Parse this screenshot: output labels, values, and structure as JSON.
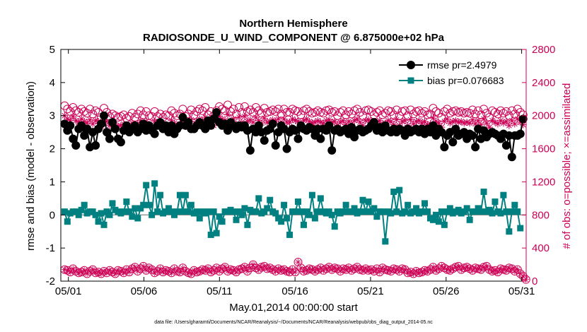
{
  "chart_data": {
    "type": "line",
    "title_line1": "Northern Hemisphere",
    "title_line2": "RADIOSONDE_U_WIND_COMPONENT @ 6.875000e+02 hPa",
    "xlabel": "May.01,2014 00:00:00 start",
    "ylabel_left": "rmse and bias (model - observation)",
    "ylabel_right": "# of obs: o=possible; ×=assimilated",
    "footnote": "data file: /Users/gharamti/Documents/NCAR/Reanalysis/~/Documents/NCAR/Reanalysis/webpub/obs_diag_output_2014-05.nc",
    "xlim": [
      0.5,
      31.3
    ],
    "ylim_left": [
      -2,
      5
    ],
    "ylim_right": [
      0,
      2800
    ],
    "left_ticks": [
      "5",
      "4",
      "3",
      "2",
      "1",
      "0",
      "-1",
      "-2"
    ],
    "left_tick_values": [
      5,
      4,
      3,
      2,
      1,
      0,
      -1,
      -2
    ],
    "right_ticks": [
      "2800",
      "2400",
      "2000",
      "1600",
      "1200",
      "800",
      "400",
      "0"
    ],
    "right_tick_values": [
      2800,
      2400,
      2000,
      1600,
      1200,
      800,
      400,
      0
    ],
    "x_ticks": [
      "05/01",
      "05/06",
      "05/11",
      "05/16",
      "05/21",
      "05/26",
      "05/31"
    ],
    "x_tick_values": [
      1,
      6,
      11,
      16,
      21,
      26,
      31
    ],
    "colors": {
      "rmse": "#000000",
      "bias": "#008080",
      "obs": "#cc0055",
      "zero_line": "#999999"
    },
    "series": [
      {
        "name": "rmse",
        "legend": "rmse pr=2.4979",
        "mean": 2.4979,
        "values": [
          2.75,
          2.55,
          2.7,
          2.3,
          2.1,
          2.6,
          2.7,
          2.4,
          2.6,
          2.05,
          2.5,
          2.1,
          2.6,
          2.75,
          3.0,
          2.5,
          2.3,
          2.8,
          2.6,
          2.3,
          2.2,
          2.55,
          2.7,
          2.5,
          2.6,
          2.7,
          2.5,
          2.6,
          2.75,
          2.55,
          2.7,
          2.55,
          2.45,
          2.7,
          2.8,
          2.6,
          2.7,
          2.5,
          2.7,
          2.45,
          2.6,
          2.7,
          2.95,
          2.7,
          2.8,
          2.6,
          2.6,
          2.7,
          2.8,
          2.7,
          2.6,
          2.85,
          2.7,
          2.9,
          3.1,
          2.8,
          2.7,
          2.75,
          2.55,
          2.8,
          2.7,
          2.6,
          2.7,
          2.65,
          2.7,
          2.55,
          1.95,
          2.6,
          2.5,
          2.7,
          2.5,
          2.25,
          2.55,
          2.6,
          2.75,
          2.1,
          2.5,
          2.7,
          2.6,
          2.0,
          2.5,
          2.6,
          2.55,
          2.3,
          2.7,
          2.6,
          2.55,
          2.65,
          2.6,
          2.4,
          2.6,
          2.3,
          2.6,
          2.55,
          2.7,
          1.95,
          2.55,
          2.6,
          2.5,
          2.55,
          2.6,
          2.45,
          2.65,
          2.35,
          2.55,
          2.6,
          2.5,
          2.55,
          2.6,
          2.7,
          2.8,
          2.55,
          2.65,
          2.5,
          2.7,
          2.55,
          2.5,
          2.6,
          2.5,
          2.6,
          2.55,
          2.4,
          2.6,
          2.5,
          2.55,
          2.6,
          2.5,
          2.6,
          2.45,
          2.6,
          2.5,
          2.7,
          2.4,
          2.6,
          2.5,
          2.05,
          2.4,
          2.5,
          2.2,
          2.6,
          2.4,
          2.45,
          2.5,
          2.3,
          2.45,
          2.4,
          2.05,
          2.6,
          2.3,
          2.55,
          2.35,
          2.45,
          2.5,
          2.45,
          2.4,
          2.3,
          2.45,
          2.1,
          2.4,
          1.75,
          2.4,
          2.4,
          2.45,
          2.9
        ]
      },
      {
        "name": "bias",
        "legend": "bias pr=0.076683",
        "mean": 0.076683,
        "values": [
          0.1,
          -0.2,
          0.05,
          0.1,
          0.1,
          0.0,
          0.15,
          0.3,
          0.05,
          0.1,
          0.1,
          0.0,
          -0.2,
          0.05,
          -0.3,
          0.1,
          0.0,
          0.35,
          0.15,
          0.1,
          0.05,
          0.1,
          0.4,
          0.1,
          -0.05,
          0.2,
          -0.1,
          0.2,
          0.3,
          0.9,
          0.3,
          0.0,
          0.95,
          0.1,
          0.6,
          0.05,
          0.1,
          0.2,
          0.1,
          0.0,
          0.1,
          0.6,
          0.1,
          0.6,
          0.1,
          0.3,
          0.05,
          0.1,
          -0.1,
          0.1,
          0.05,
          0.1,
          -0.6,
          0.1,
          -0.55,
          -0.05,
          -0.2,
          0.1,
          0.1,
          0.15,
          0.1,
          -0.15,
          0.1,
          0.0,
          0.2,
          -0.3,
          0.15,
          0.1,
          0.1,
          0.5,
          0.05,
          0.1,
          0.2,
          0.45,
          0.1,
          0.05,
          -0.1,
          -0.2,
          0.3,
          -0.1,
          -0.6,
          0.1,
          0.1,
          0.4,
          0.1,
          -0.3,
          0.1,
          0.0,
          0.6,
          -0.1,
          0.1,
          0.5,
          0.1,
          0.05,
          0.1,
          0.0,
          -0.35,
          0.1,
          0.05,
          0.1,
          0.3,
          0.1,
          0.1,
          0.2,
          0.05,
          0.1,
          0.45,
          0.1,
          0.4,
          0.1,
          0.2,
          -0.05,
          0.1,
          0.1,
          -0.8,
          0.1,
          0.05,
          0.7,
          0.1,
          0.75,
          0.05,
          0.1,
          0.3,
          0.05,
          0.1,
          0.2,
          0.05,
          0.1,
          0.35,
          0.1,
          -0.1,
          -0.15,
          0.0,
          -0.2,
          0.1,
          -0.3,
          0.1,
          0.2,
          0.05,
          0.1,
          0.15,
          0.05,
          0.1,
          0.2,
          -0.15,
          0.1,
          0.1,
          0.2,
          0.1,
          0.7,
          0.1,
          0.15,
          0.05,
          0.4,
          0.1,
          0.05,
          0.6,
          0.1,
          -0.5,
          0.1,
          0.3,
          0.1,
          -0.4
        ]
      },
      {
        "name": "obs possible",
        "values": [
          2120,
          2080,
          2050,
          2100,
          2060,
          2040,
          2080,
          2050,
          2030,
          2080,
          2020,
          2060,
          2040,
          1980,
          2090,
          2040,
          1990,
          2020,
          2000,
          1980,
          1990,
          2010,
          1970,
          1990,
          2030,
          1980,
          2020,
          2060,
          2010,
          2050,
          2000,
          1990,
          2050,
          1990,
          2020,
          1980,
          2010,
          2000,
          2060,
          2030,
          2000,
          2020,
          2080,
          1990,
          2020,
          2070,
          2010,
          2050,
          2080,
          2060,
          2100,
          2010,
          2050,
          2000,
          2060,
          2110,
          2080,
          2060,
          2130,
          2050,
          2080,
          2020,
          2100,
          2040,
          2110,
          2050,
          2070,
          2040,
          2100,
          2060,
          2030,
          2090,
          2040,
          2050,
          2070,
          2050,
          2080,
          2020,
          2080,
          2040,
          2040,
          2080,
          2060,
          2050,
          2010,
          2060,
          2080,
          2050,
          2030,
          2040,
          2060,
          2040,
          2030,
          2060,
          2070,
          2040,
          2050,
          2000,
          2040,
          2060,
          2010,
          2050,
          2020,
          2060,
          2080,
          2040,
          2000,
          2060,
          2070,
          2050,
          2010,
          2040,
          2060,
          2010,
          2030,
          2060,
          2050,
          2010,
          2070,
          2000,
          2050,
          2060,
          2000,
          2070,
          2020,
          2050,
          2060,
          2030,
          2050,
          2010,
          2020,
          2090,
          2050,
          2030,
          1980,
          2050,
          2080,
          2030,
          2050,
          2060,
          2040,
          2050,
          2030,
          2040,
          2030,
          2070,
          2020,
          2060,
          2010,
          2080,
          2030,
          1980,
          2060,
          2040,
          2020,
          2060,
          2030,
          2050,
          2000,
          2060,
          2020,
          2080,
          2040,
          2010
        ]
      },
      {
        "name": "obs assimilated",
        "values": [
          2000,
          1960,
          1940,
          1990,
          1940,
          1920,
          1960,
          1930,
          1910,
          1950,
          1900,
          1940,
          1930,
          1870,
          1980,
          1930,
          1880,
          1910,
          1890,
          1870,
          1880,
          1900,
          1860,
          1880,
          1910,
          1870,
          1900,
          1940,
          1890,
          1930,
          1880,
          1870,
          1930,
          1880,
          1900,
          1860,
          1890,
          1880,
          1940,
          1910,
          1880,
          1900,
          1960,
          1870,
          1900,
          1950,
          1890,
          1930,
          1960,
          1940,
          1980,
          1890,
          1930,
          1880,
          1940,
          1990,
          1960,
          1940,
          2010,
          1930,
          1960,
          1900,
          1980,
          1920,
          1990,
          1930,
          1950,
          1920,
          1980,
          1940,
          1910,
          1970,
          1920,
          1930,
          1950,
          1930,
          1960,
          1900,
          1960,
          1920,
          1920,
          1960,
          1940,
          1930,
          1890,
          1940,
          1960,
          1930,
          1910,
          1920,
          1940,
          1920,
          1910,
          1940,
          1950,
          1920,
          1930,
          1880,
          1920,
          1940,
          1890,
          1930,
          1900,
          1940,
          1960,
          1920,
          1880,
          1940,
          1950,
          1930,
          1890,
          1920,
          1940,
          1890,
          1910,
          1940,
          1930,
          1890,
          1950,
          1880,
          1930,
          1940,
          1880,
          1950,
          1900,
          1930,
          1940,
          1910,
          1930,
          1890,
          1900,
          1970,
          1930,
          1910,
          1860,
          1930,
          1960,
          1910,
          1930,
          1940,
          1920,
          1930,
          1910,
          1920,
          1910,
          1950,
          1900,
          1940,
          1890,
          1960,
          1910,
          1860,
          1940,
          1920,
          1900,
          1940,
          1910,
          1930,
          1880,
          1940,
          1900,
          1960,
          1920,
          1890
        ]
      },
      {
        "name": "obs possible (low band)",
        "values": [
          140,
          130,
          110,
          150,
          120,
          100,
          110,
          130,
          90,
          120,
          140,
          100,
          110,
          90,
          120,
          100,
          130,
          110,
          90,
          130,
          120,
          100,
          140,
          110,
          150,
          170,
          120,
          150,
          180,
          130,
          160,
          140,
          100,
          120,
          150,
          110,
          130,
          120,
          100,
          150,
          120,
          110,
          160,
          120,
          100,
          90,
          130,
          110,
          120,
          140,
          130,
          150,
          110,
          130,
          160,
          120,
          150,
          170,
          120,
          140,
          130,
          110,
          140,
          150,
          170,
          120,
          160,
          200,
          160,
          140,
          170,
          180,
          150,
          160,
          140,
          120,
          150,
          130,
          140,
          120,
          110,
          140,
          110,
          230,
          160,
          120,
          130,
          150,
          140,
          120,
          140,
          160,
          130,
          150,
          170,
          140,
          160,
          150,
          120,
          150,
          140,
          160,
          130,
          150,
          170,
          140,
          130,
          150,
          130,
          140,
          120,
          150,
          110,
          160,
          140,
          130,
          120,
          150,
          140,
          120,
          150,
          140,
          100,
          110,
          90,
          120,
          100,
          110,
          130,
          120,
          140,
          170,
          130,
          150,
          180,
          160,
          140,
          130,
          150,
          170,
          180,
          140,
          160,
          170,
          150,
          130,
          160,
          150,
          140,
          170,
          180,
          140,
          120,
          130,
          110,
          150,
          140,
          130,
          160,
          150,
          120,
          140,
          90,
          60,
          20
        ]
      }
    ]
  }
}
